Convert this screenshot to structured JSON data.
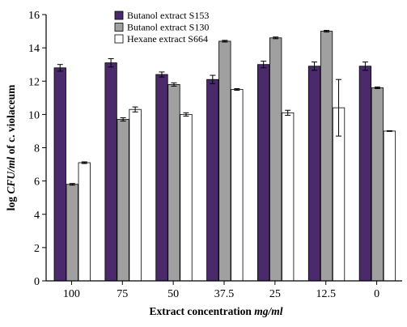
{
  "chart_data": {
    "type": "bar",
    "categories": [
      "100",
      "75",
      "50",
      "37.5",
      "25",
      "12.5",
      "0"
    ],
    "series": [
      {
        "name": "Butanol extract S153",
        "color": "#4b2a6b",
        "values": [
          12.8,
          13.1,
          12.4,
          12.1,
          13.0,
          12.9,
          12.9
        ],
        "errors": [
          0.2,
          0.25,
          0.15,
          0.25,
          0.2,
          0.25,
          0.25
        ]
      },
      {
        "name": "Butanol extract S130",
        "color": "#a0a0a0",
        "values": [
          5.8,
          9.7,
          11.8,
          14.4,
          14.6,
          15.0,
          11.6
        ],
        "errors": [
          0.05,
          0.1,
          0.1,
          0.05,
          0.05,
          0.05,
          0.05
        ]
      },
      {
        "name": "Hexane extract S664",
        "color": "#ffffff",
        "values": [
          7.1,
          10.3,
          10.0,
          11.5,
          10.1,
          10.4,
          9.0
        ],
        "errors": [
          0.05,
          0.15,
          0.1,
          0.05,
          0.15,
          1.7,
          0.02
        ]
      }
    ],
    "ylim": [
      0,
      16
    ],
    "yticks": [
      "0",
      "2",
      "4",
      "6",
      "8",
      "10",
      "12",
      "14",
      "16"
    ],
    "ylabel": {
      "prefix": "log ",
      "emph": "CFU/ml",
      "suffix": " of c. violaceum"
    },
    "xlabel": {
      "prefix": "Extract concentration ",
      "emph": "mg/ml"
    },
    "legend_position": "top-center"
  }
}
